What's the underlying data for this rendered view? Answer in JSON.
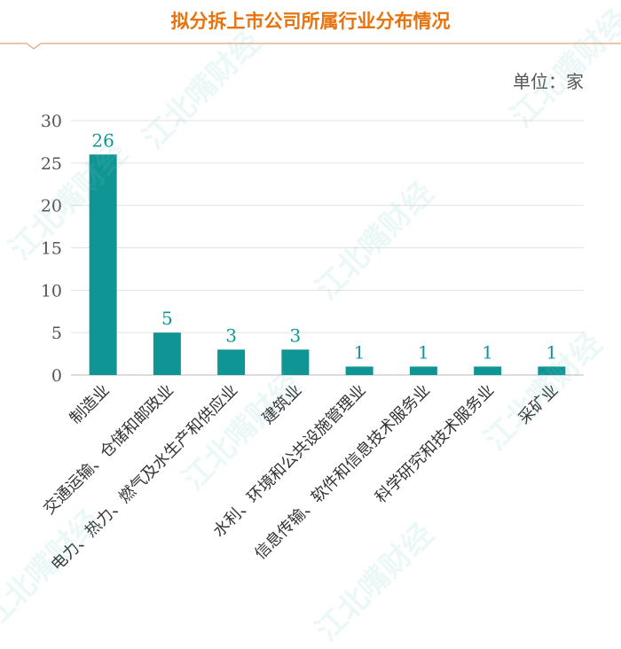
{
  "header": {
    "title": "拟分拆上市公司所属行业分布情况",
    "unit_label": "单位：家",
    "title_color": "#e8720c"
  },
  "watermark": "江北嘴财经",
  "chart_data": {
    "type": "bar",
    "categories": [
      "制造业",
      "交通运输、仓储和邮政业",
      "电力、热力、燃气及水生产和供应业",
      "建筑业",
      "水利、环境和公共设施管理业",
      "信息传输、软件和信息技术服务业",
      "科学研究和技术服务业",
      "采矿业"
    ],
    "values": [
      26,
      5,
      3,
      3,
      1,
      1,
      1,
      1
    ],
    "data_labels": [
      "26",
      "5",
      "3",
      "3",
      "1",
      "1",
      "1",
      "1"
    ],
    "yticks": [
      0,
      5,
      10,
      15,
      20,
      25,
      30
    ],
    "ylim": [
      0,
      30
    ],
    "grid": true,
    "bar_color": "#0e9594",
    "label_color": "#0e9594"
  }
}
